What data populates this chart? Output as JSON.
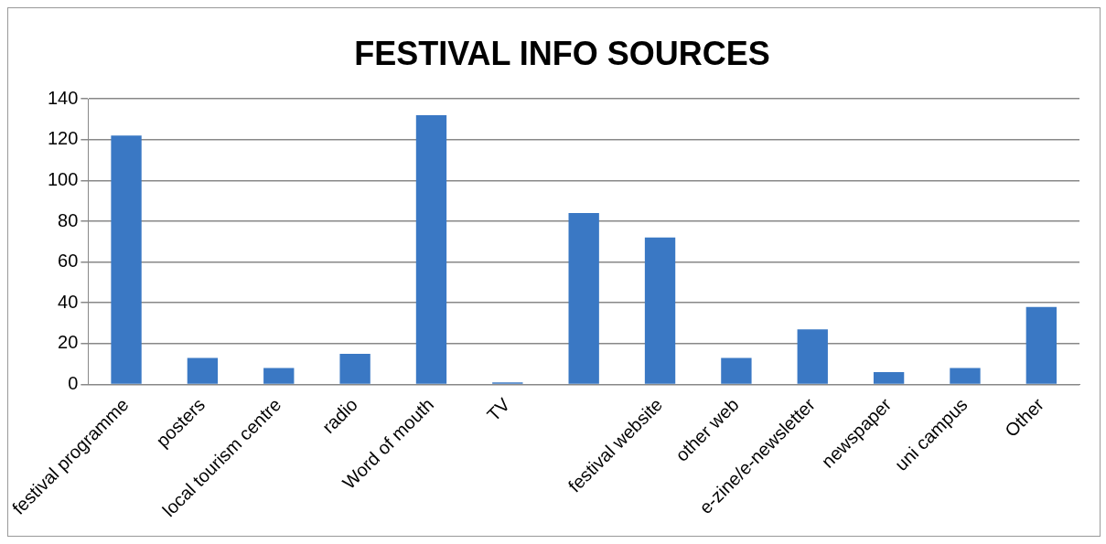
{
  "chart_data": {
    "type": "bar",
    "title": "FESTIVAL INFO SOURCES",
    "categories": [
      "festival programme",
      "posters",
      "local tourism centre",
      "radio",
      "Word of mouth",
      "TV",
      null,
      "festival website",
      "other web",
      "e-zine/e-newsletter",
      "newspaper",
      "uni campus",
      "Other"
    ],
    "values": [
      122,
      13,
      8,
      15,
      132,
      1,
      84,
      72,
      13,
      27,
      6,
      8,
      38
    ],
    "color": "#3a78c4",
    "ylim": [
      0,
      140
    ],
    "yticks": [
      0,
      20,
      40,
      60,
      80,
      100,
      120,
      140
    ],
    "grid": "y",
    "legend": false
  }
}
